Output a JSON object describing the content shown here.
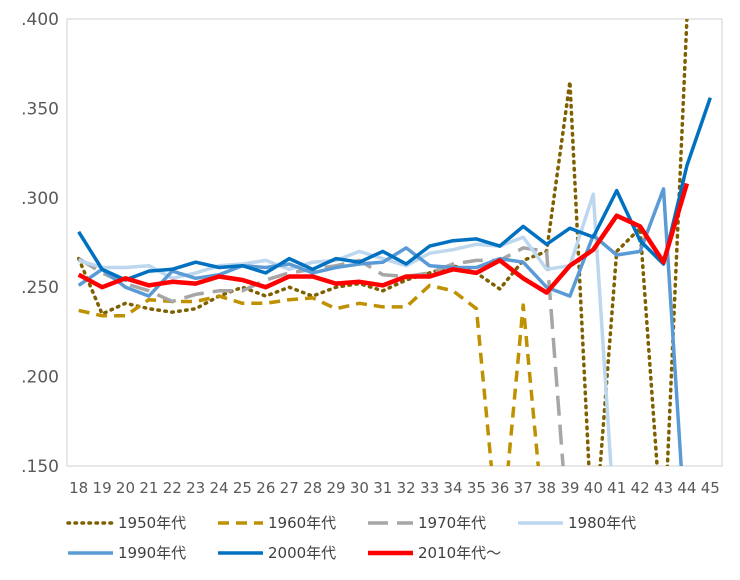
{
  "chart_data": {
    "type": "line",
    "title": "",
    "xlabel": "",
    "ylabel": "",
    "x": [
      18,
      19,
      20,
      21,
      22,
      23,
      24,
      25,
      26,
      27,
      28,
      29,
      30,
      31,
      32,
      33,
      34,
      35,
      36,
      37,
      38,
      39,
      40,
      41,
      42,
      43,
      44,
      45
    ],
    "xtick_labels": [
      "18",
      "19",
      "20",
      "21",
      "22",
      "23",
      "24",
      "25",
      "26",
      "27",
      "28",
      "29",
      "30",
      "31",
      "32",
      "33",
      "34",
      "35",
      "36",
      "37",
      "38",
      "39",
      "40",
      "41",
      "42",
      "43",
      "44",
      "45"
    ],
    "ylim": [
      0.15,
      0.4
    ],
    "yticks": [
      0.15,
      0.2,
      0.25,
      0.3,
      0.35,
      0.4
    ],
    "ytick_labels": [
      ".150",
      ".200",
      ".250",
      ".300",
      ".350",
      ".400"
    ],
    "grid": false,
    "legend_position": "bottom",
    "series": [
      {
        "name": "1950年代",
        "color": "#7f6000",
        "style": "dotted",
        "values": [
          0.266,
          0.235,
          0.241,
          0.238,
          0.236,
          0.238,
          0.245,
          0.25,
          0.245,
          0.25,
          0.245,
          0.25,
          0.252,
          0.248,
          0.254,
          0.258,
          0.262,
          0.258,
          0.249,
          0.265,
          0.27,
          0.365,
          0.1,
          0.27,
          0.283,
          0.1,
          0.4,
          null
        ]
      },
      {
        "name": "1960年代",
        "color": "#bf9000",
        "style": "dashed",
        "values": [
          0.237,
          0.234,
          0.234,
          0.243,
          0.242,
          0.242,
          0.245,
          0.241,
          0.241,
          0.243,
          0.244,
          0.238,
          0.241,
          0.239,
          0.239,
          0.251,
          0.248,
          0.238,
          0.1,
          0.24,
          0.1,
          null,
          null,
          null,
          null,
          null,
          null,
          null
        ]
      },
      {
        "name": "1970年代",
        "color": "#a6a6a6",
        "style": "longdash",
        "values": [
          0.266,
          0.258,
          0.252,
          0.248,
          0.242,
          0.246,
          0.248,
          0.248,
          0.254,
          0.258,
          0.26,
          0.262,
          0.265,
          0.257,
          0.256,
          0.258,
          0.263,
          0.265,
          0.265,
          0.272,
          0.27,
          0.1,
          null,
          null,
          null,
          null,
          null,
          null
        ]
      },
      {
        "name": "1980年代",
        "color": "#bdd7ee",
        "style": "solid",
        "values": [
          0.265,
          0.261,
          0.261,
          0.262,
          0.255,
          0.258,
          0.262,
          0.263,
          0.265,
          0.26,
          0.264,
          0.265,
          0.27,
          0.266,
          0.262,
          0.269,
          0.271,
          0.274,
          0.273,
          0.278,
          0.26,
          0.262,
          0.302,
          0.1,
          null,
          null,
          null,
          null
        ]
      },
      {
        "name": "1990年代",
        "color": "#5b9bd5",
        "style": "solid",
        "values": [
          0.251,
          0.26,
          0.25,
          0.245,
          0.259,
          0.255,
          0.257,
          0.262,
          0.261,
          0.263,
          0.258,
          0.261,
          0.263,
          0.264,
          0.272,
          0.262,
          0.261,
          0.261,
          0.266,
          0.264,
          0.25,
          0.245,
          0.279,
          0.268,
          0.27,
          0.305,
          0.1,
          null
        ]
      },
      {
        "name": "2000年代",
        "color": "#0070c0",
        "style": "solid",
        "values": [
          0.281,
          0.26,
          0.254,
          0.259,
          0.26,
          0.264,
          0.261,
          0.262,
          0.258,
          0.266,
          0.26,
          0.266,
          0.264,
          0.27,
          0.263,
          0.273,
          0.276,
          0.277,
          0.273,
          0.284,
          0.274,
          0.283,
          0.278,
          0.304,
          0.276,
          0.263,
          0.318,
          0.356
        ]
      },
      {
        "name": "2010年代～",
        "color": "#ff0000",
        "style": "solid",
        "values": [
          0.257,
          0.25,
          0.255,
          0.251,
          0.253,
          0.252,
          0.256,
          0.254,
          0.25,
          0.256,
          0.256,
          0.252,
          0.253,
          0.251,
          0.256,
          0.256,
          0.26,
          0.258,
          0.265,
          0.255,
          0.247,
          0.262,
          0.271,
          0.29,
          0.284,
          0.264,
          0.308,
          null
        ]
      }
    ]
  }
}
